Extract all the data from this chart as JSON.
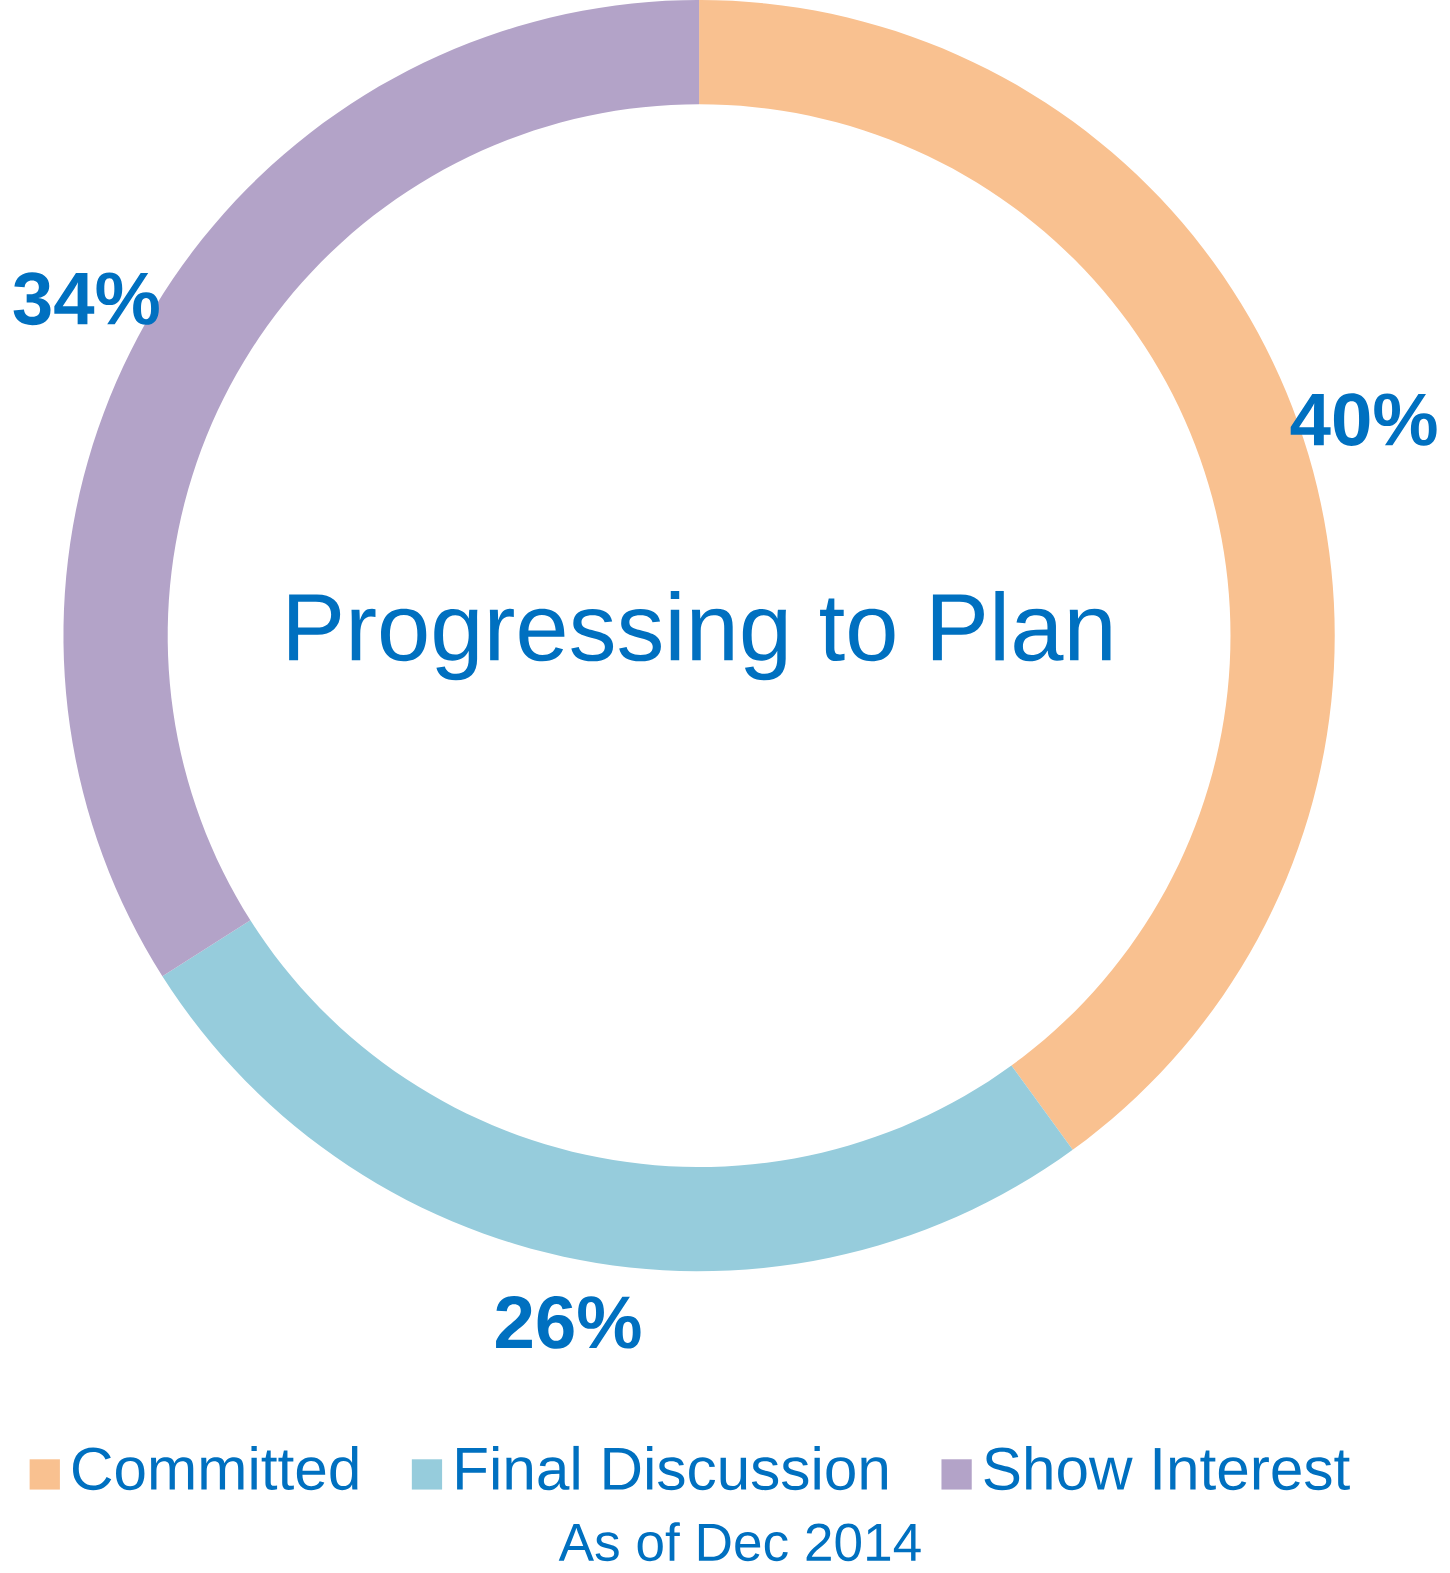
{
  "chart_data": {
    "type": "donut",
    "title": "Progressing to Plan",
    "categories": [
      "Committed",
      "Final Discussion",
      "Show Interest"
    ],
    "values": [
      40,
      26,
      34
    ],
    "colors": [
      "#f9c190",
      "#96ccdc",
      "#b3a3c8"
    ],
    "value_labels": [
      "40%",
      "26%",
      "34%"
    ],
    "legend": "bottom",
    "annotations": [
      "As of Dec 2014"
    ]
  }
}
